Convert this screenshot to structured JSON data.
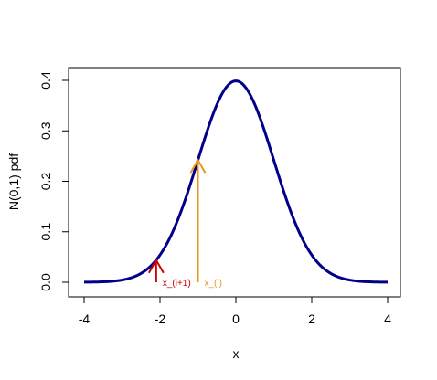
{
  "chart_data": {
    "type": "line",
    "title": "",
    "xlabel": "x",
    "ylabel": "N(0,1) pdf",
    "xlim": [
      -4,
      4
    ],
    "ylim": [
      0,
      0.4
    ],
    "x_ticks": [
      "-4",
      "-2",
      "0",
      "2",
      "4"
    ],
    "y_ticks": [
      "0.0",
      "0.1",
      "0.2",
      "0.3",
      "0.4"
    ],
    "grid": false,
    "legend": "none",
    "series": [
      {
        "x": [
          -4,
          -3.5,
          -3,
          -2.5,
          -2.2,
          -2,
          -1.5,
          -1,
          -0.5,
          0,
          0.5,
          1,
          1.5,
          2,
          2.5,
          3,
          3.5,
          4
        ],
        "y": [
          0.0001,
          0.0009,
          0.0044,
          0.0175,
          0.0355,
          0.054,
          0.1295,
          0.242,
          0.3521,
          0.3989,
          0.3521,
          0.242,
          0.1295,
          0.054,
          0.0175,
          0.0044,
          0.0009,
          0.0001
        ],
        "color": "#00008b"
      }
    ],
    "annotations": [
      {
        "label": "x_(i+1)",
        "x": -2.1,
        "y_from": 0,
        "y_to": 0.0439,
        "color": "#cc0000"
      },
      {
        "label": "x_(i)",
        "x": -1.0,
        "y_from": 0,
        "y_to": 0.242,
        "color": "#e8961e"
      }
    ]
  }
}
